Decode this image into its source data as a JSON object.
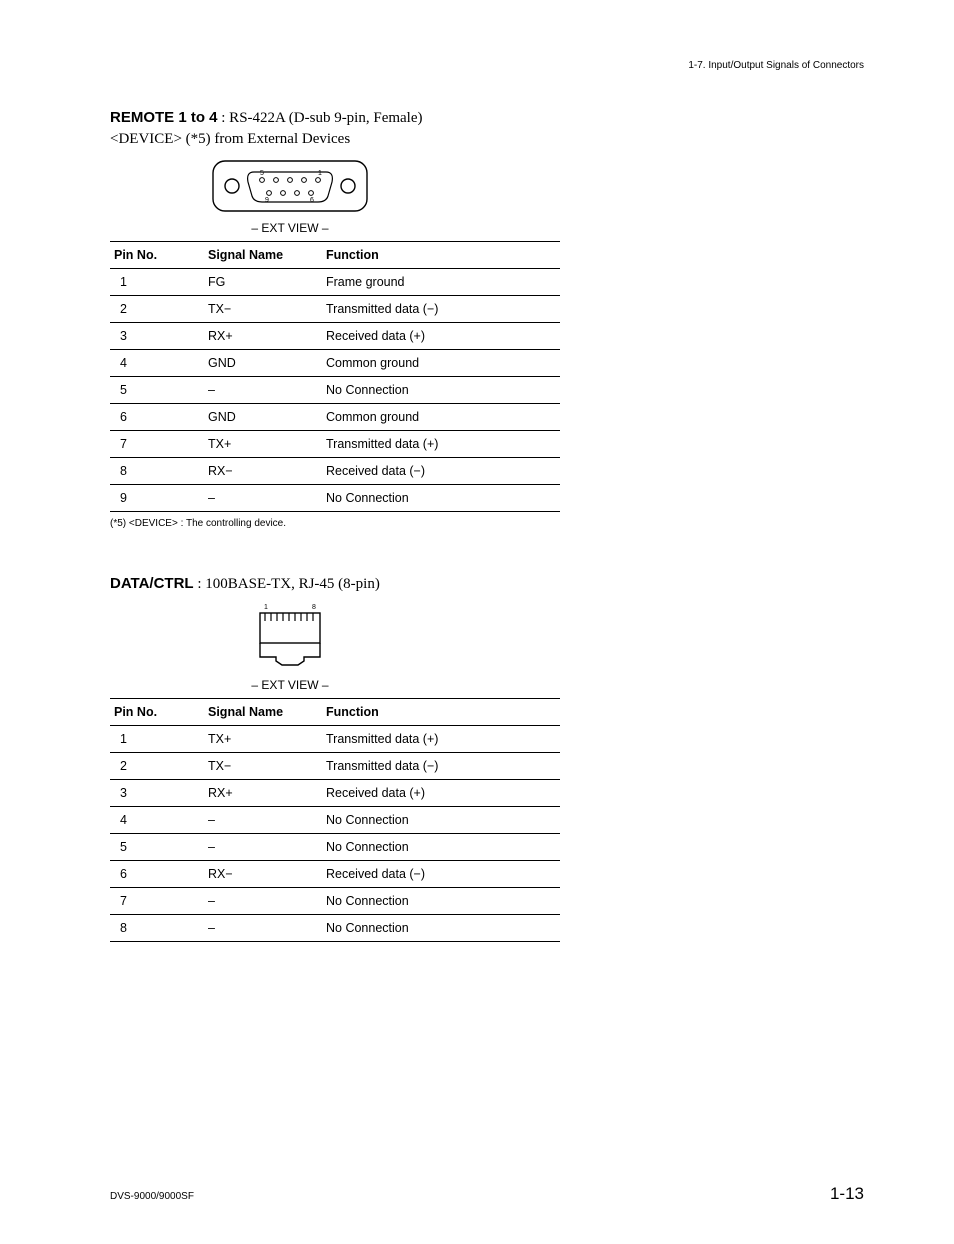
{
  "running_head": "1-7. Input/Output Signals of Connectors",
  "section1": {
    "name": "REMOTE 1 to 4",
    "desc": " : RS-422A (D-sub 9-pin, Female)",
    "subtitle": "<DEVICE> (*5) from External Devices",
    "ext_view": "– EXT VIEW –",
    "connector": {
      "top_pins": [
        "5",
        "",
        "",
        "",
        "1"
      ],
      "bottom_pins": [
        "9",
        "",
        "",
        "6"
      ]
    },
    "headers": {
      "pin": "Pin No.",
      "signal": "Signal Name",
      "func": "Function"
    },
    "rows": [
      {
        "pin": "1",
        "signal": "FG",
        "func": "Frame ground"
      },
      {
        "pin": "2",
        "signal": "TX−",
        "func": "Transmitted data (−)"
      },
      {
        "pin": "3",
        "signal": "RX+",
        "func": "Received data (+)"
      },
      {
        "pin": "4",
        "signal": "GND",
        "func": "Common ground"
      },
      {
        "pin": "5",
        "signal": "–",
        "func": "No Connection"
      },
      {
        "pin": "6",
        "signal": "GND",
        "func": "Common ground"
      },
      {
        "pin": "7",
        "signal": "TX+",
        "func": "Transmitted data (+)"
      },
      {
        "pin": "8",
        "signal": "RX−",
        "func": "Received data (−)"
      },
      {
        "pin": "9",
        "signal": "–",
        "func": "No Connection"
      }
    ],
    "footnote": "(*5)  <DEVICE> : The controlling device."
  },
  "section2": {
    "name": "DATA/CTRL",
    "desc": " : 100BASE-TX, RJ-45 (8-pin)",
    "ext_view": "– EXT VIEW –",
    "connector": {
      "pins_left": "1",
      "pins_right": "8",
      "pin_count": 8
    },
    "headers": {
      "pin": "Pin No.",
      "signal": "Signal Name",
      "func": "Function"
    },
    "rows": [
      {
        "pin": "1",
        "signal": "TX+",
        "func": "Transmitted data (+)"
      },
      {
        "pin": "2",
        "signal": "TX−",
        "func": "Transmitted data (−)"
      },
      {
        "pin": "3",
        "signal": "RX+",
        "func": "Received data (+)"
      },
      {
        "pin": "4",
        "signal": "–",
        "func": "No Connection"
      },
      {
        "pin": "5",
        "signal": "–",
        "func": "No Connection"
      },
      {
        "pin": "6",
        "signal": "RX−",
        "func": "Received data (−)"
      },
      {
        "pin": "7",
        "signal": "–",
        "func": "No Connection"
      },
      {
        "pin": "8",
        "signal": "–",
        "func": "No Connection"
      }
    ]
  },
  "footer": {
    "model": "DVS-9000/9000SF",
    "pageno": "1-13"
  },
  "colors": {
    "text": "#000000",
    "bg": "#ffffff",
    "rule": "#000000"
  }
}
